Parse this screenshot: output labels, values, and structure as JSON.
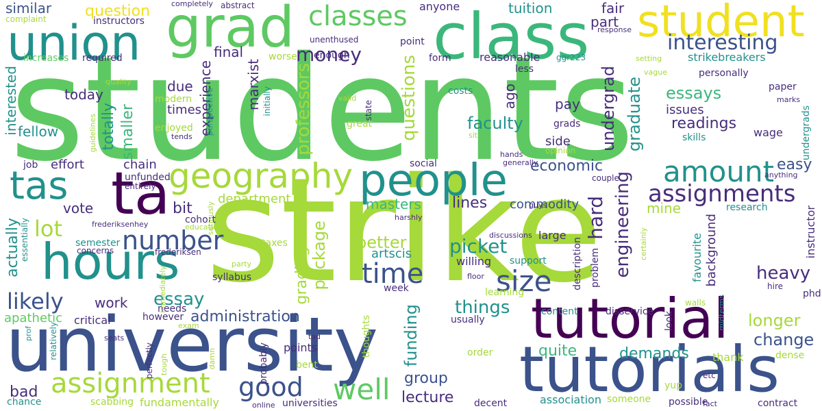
{
  "palette": {
    "background": "#ffffff",
    "yellow": "#f0e020",
    "lime": "#a6d93a",
    "green": "#5ec962",
    "mint": "#3bb77b",
    "teal": "#21918c",
    "cyan": "#2c8d8a",
    "blue": "#3b528b",
    "indigo": "#472d7b",
    "purple": "#440154"
  },
  "words": [
    {
      "text": "students",
      "color": "green"
    },
    {
      "text": "strike",
      "color": "lime"
    },
    {
      "text": "university",
      "color": "blue"
    },
    {
      "text": "tutorials",
      "color": "blue"
    },
    {
      "text": "tutorial",
      "color": "purple"
    },
    {
      "text": "class",
      "color": "mint"
    },
    {
      "text": "student",
      "color": "yellow"
    },
    {
      "text": "union",
      "color": "teal"
    },
    {
      "text": "grad",
      "color": "green"
    },
    {
      "text": "hours",
      "color": "teal"
    },
    {
      "text": "people",
      "color": "teal"
    },
    {
      "text": "ta",
      "color": "purple"
    },
    {
      "text": "tas",
      "color": "teal"
    },
    {
      "text": "geography",
      "color": "lime"
    },
    {
      "text": "assignment",
      "color": "lime"
    },
    {
      "text": "classes",
      "color": "green"
    },
    {
      "text": "amount",
      "color": "teal"
    },
    {
      "text": "assignments",
      "color": "indigo"
    },
    {
      "text": "number",
      "color": "blue"
    },
    {
      "text": "size",
      "color": "blue"
    },
    {
      "text": "time",
      "color": "blue"
    },
    {
      "text": "well",
      "color": "green"
    },
    {
      "text": "good",
      "color": "blue"
    },
    {
      "text": "interesting",
      "color": "blue"
    },
    {
      "text": "money",
      "color": "indigo"
    },
    {
      "text": "lot",
      "color": "lime"
    },
    {
      "text": "likely",
      "color": "blue"
    },
    {
      "text": "administration",
      "color": "blue"
    },
    {
      "text": "experience",
      "color": "indigo"
    },
    {
      "text": "professors",
      "color": "lime"
    },
    {
      "text": "questions",
      "color": "lime"
    },
    {
      "text": "faculty",
      "color": "teal"
    },
    {
      "text": "economic",
      "color": "blue"
    },
    {
      "text": "hard",
      "color": "indigo"
    },
    {
      "text": "engineering",
      "color": "indigo"
    },
    {
      "text": "graduate",
      "color": "teal"
    },
    {
      "text": "undergrad",
      "color": "indigo"
    },
    {
      "text": "readings",
      "color": "indigo"
    },
    {
      "text": "essays",
      "color": "mint"
    },
    {
      "text": "picket",
      "color": "teal"
    },
    {
      "text": "things",
      "color": "teal"
    },
    {
      "text": "heavy",
      "color": "indigo"
    },
    {
      "text": "longer",
      "color": "lime"
    },
    {
      "text": "change",
      "color": "blue"
    },
    {
      "text": "essay",
      "color": "teal"
    },
    {
      "text": "demands",
      "color": "teal"
    },
    {
      "text": "package",
      "color": "lime"
    },
    {
      "text": "grading",
      "color": "lime"
    },
    {
      "text": "funding",
      "color": "teal"
    },
    {
      "text": "better",
      "color": "lime"
    },
    {
      "text": "lecture",
      "color": "indigo"
    },
    {
      "text": "group",
      "color": "blue"
    },
    {
      "text": "quite",
      "color": "mint"
    },
    {
      "text": "masters",
      "color": "mint"
    },
    {
      "text": "department",
      "color": "lime"
    },
    {
      "text": "lines",
      "color": "indigo"
    },
    {
      "text": "commodity",
      "color": "blue"
    },
    {
      "text": "vote",
      "color": "indigo"
    },
    {
      "text": "bit",
      "color": "indigo"
    },
    {
      "text": "actually",
      "color": "teal"
    },
    {
      "text": "bad",
      "color": "indigo"
    },
    {
      "text": "work",
      "color": "indigo"
    },
    {
      "text": "apathetic",
      "color": "green"
    },
    {
      "text": "critical",
      "color": "indigo"
    },
    {
      "text": "effort",
      "color": "indigo"
    },
    {
      "text": "chain",
      "color": "indigo"
    },
    {
      "text": "totally",
      "color": "teal"
    },
    {
      "text": "smaller",
      "color": "mint"
    },
    {
      "text": "marxist",
      "color": "indigo"
    },
    {
      "text": "today",
      "color": "indigo"
    },
    {
      "text": "final",
      "color": "indigo"
    },
    {
      "text": "question",
      "color": "yellow"
    },
    {
      "text": "similar",
      "color": "blue"
    },
    {
      "text": "fellow",
      "color": "teal"
    },
    {
      "text": "interested",
      "color": "teal"
    },
    {
      "text": "due",
      "color": "indigo"
    },
    {
      "text": "times",
      "color": "indigo"
    },
    {
      "text": "part",
      "color": "indigo"
    },
    {
      "text": "fair",
      "color": "indigo"
    },
    {
      "text": "tuition",
      "color": "teal"
    },
    {
      "text": "anyone",
      "color": "indigo"
    },
    {
      "text": "reasonable",
      "color": "indigo"
    },
    {
      "text": "strikebreakers",
      "color": "teal"
    },
    {
      "text": "ago",
      "color": "indigo"
    },
    {
      "text": "pay",
      "color": "indigo"
    },
    {
      "text": "side",
      "color": "indigo"
    },
    {
      "text": "costs",
      "color": "teal"
    },
    {
      "text": "paper",
      "color": "indigo"
    },
    {
      "text": "issues",
      "color": "indigo"
    },
    {
      "text": "skills",
      "color": "teal"
    },
    {
      "text": "wage",
      "color": "indigo"
    },
    {
      "text": "easy",
      "color": "blue"
    },
    {
      "text": "mine",
      "color": "lime"
    },
    {
      "text": "research",
      "color": "teal"
    },
    {
      "text": "instructor",
      "color": "indigo"
    },
    {
      "text": "background",
      "color": "indigo"
    },
    {
      "text": "favourite",
      "color": "teal"
    },
    {
      "text": "support",
      "color": "teal"
    },
    {
      "text": "willing",
      "color": "indigo"
    },
    {
      "text": "large",
      "color": "indigo"
    },
    {
      "text": "description",
      "color": "indigo"
    },
    {
      "text": "problem",
      "color": "indigo"
    },
    {
      "text": "content",
      "color": "teal"
    },
    {
      "text": "disservice",
      "color": "indigo"
    },
    {
      "text": "look",
      "color": "indigo"
    },
    {
      "text": "phd",
      "color": "indigo"
    },
    {
      "text": "walls",
      "color": "lime"
    },
    {
      "text": "hire",
      "color": "indigo"
    },
    {
      "text": "thank",
      "color": "lime"
    },
    {
      "text": "dense",
      "color": "lime"
    },
    {
      "text": "yup",
      "color": "lime"
    },
    {
      "text": "possible",
      "color": "indigo"
    },
    {
      "text": "contract",
      "color": "indigo"
    },
    {
      "text": "someone",
      "color": "lime"
    },
    {
      "text": "association",
      "color": "teal"
    },
    {
      "text": "decent",
      "color": "indigo"
    },
    {
      "text": "universities",
      "color": "indigo"
    },
    {
      "text": "online",
      "color": "indigo"
    },
    {
      "text": "fundamentally",
      "color": "lime"
    },
    {
      "text": "scabbing",
      "color": "lime"
    },
    {
      "text": "chance",
      "color": "teal"
    },
    {
      "text": "semester",
      "color": "teal"
    },
    {
      "text": "syllabus",
      "color": "indigo"
    },
    {
      "text": "cohort",
      "color": "indigo"
    },
    {
      "text": "taxes",
      "color": "lime"
    },
    {
      "text": "artscis",
      "color": "teal"
    },
    {
      "text": "learning",
      "color": "lime"
    },
    {
      "text": "usually",
      "color": "indigo"
    },
    {
      "text": "order",
      "color": "lime"
    },
    {
      "text": "points",
      "color": "indigo"
    },
    {
      "text": "bent",
      "color": "lime"
    },
    {
      "text": "probably",
      "color": "indigo"
    },
    {
      "text": "thoughts",
      "color": "lime"
    },
    {
      "text": "week",
      "color": "indigo"
    },
    {
      "text": "however",
      "color": "indigo"
    },
    {
      "text": "needs",
      "color": "indigo"
    },
    {
      "text": "job",
      "color": "indigo"
    },
    {
      "text": "essentially",
      "color": "teal"
    },
    {
      "text": "concerns",
      "color": "indigo"
    },
    {
      "text": "frederiksen",
      "color": "indigo"
    },
    {
      "text": "frederiksenhey",
      "color": "indigo"
    },
    {
      "text": "education",
      "color": "lime"
    },
    {
      "text": "unfunded",
      "color": "indigo"
    },
    {
      "text": "entirely",
      "color": "indigo"
    },
    {
      "text": "social",
      "color": "indigo"
    },
    {
      "text": "generally",
      "color": "indigo"
    },
    {
      "text": "hands",
      "color": "indigo"
    },
    {
      "text": "couple",
      "color": "indigo"
    },
    {
      "text": "anything",
      "color": "indigo"
    },
    {
      "text": "guys",
      "color": "indigo"
    },
    {
      "text": "discussions",
      "color": "indigo"
    },
    {
      "text": "harshly",
      "color": "indigo"
    },
    {
      "text": "floor",
      "color": "indigo"
    },
    {
      "text": "great",
      "color": "lime"
    },
    {
      "text": "grads",
      "color": "indigo"
    },
    {
      "text": "opinion",
      "color": "lime"
    },
    {
      "text": "state",
      "color": "indigo"
    },
    {
      "text": "valid",
      "color": "lime"
    },
    {
      "text": "sit",
      "color": "lime"
    },
    {
      "text": "tends",
      "color": "indigo"
    },
    {
      "text": "modern",
      "color": "lime"
    },
    {
      "text": "enjoyed",
      "color": "lime"
    },
    {
      "text": "perspective",
      "color": "teal"
    },
    {
      "text": "quality",
      "color": "lime"
    },
    {
      "text": "guidelines",
      "color": "lime"
    },
    {
      "text": "initially",
      "color": "teal"
    },
    {
      "text": "less",
      "color": "indigo"
    },
    {
      "text": "form",
      "color": "indigo"
    },
    {
      "text": "enough",
      "color": "indigo"
    },
    {
      "text": "worse",
      "color": "lime"
    },
    {
      "text": "point",
      "color": "indigo"
    },
    {
      "text": "unenthused",
      "color": "indigo"
    },
    {
      "text": "abstract",
      "color": "indigo"
    },
    {
      "text": "completely",
      "color": "indigo"
    },
    {
      "text": "instructors",
      "color": "indigo"
    },
    {
      "text": "complaint",
      "color": "lime"
    },
    {
      "text": "increases",
      "color": "green"
    },
    {
      "text": "required",
      "color": "indigo"
    },
    {
      "text": "ggr223",
      "color": "teal"
    },
    {
      "text": "response",
      "color": "indigo"
    },
    {
      "text": "setting",
      "color": "lime"
    },
    {
      "text": "vague",
      "color": "lime"
    },
    {
      "text": "personally",
      "color": "indigo"
    },
    {
      "text": "marks",
      "color": "indigo"
    },
    {
      "text": "undergrads",
      "color": "teal"
    },
    {
      "text": "midterms",
      "color": "teal"
    },
    {
      "text": "etc",
      "color": "indigo"
    },
    {
      "text": "fact",
      "color": "indigo"
    },
    {
      "text": "tad",
      "color": "indigo"
    },
    {
      "text": "exam",
      "color": "lime"
    },
    {
      "text": "immediately",
      "color": "lime"
    },
    {
      "text": "damn",
      "color": "lime"
    },
    {
      "text": "tough",
      "color": "lime"
    },
    {
      "text": "perfectly",
      "color": "indigo"
    },
    {
      "text": "relatively",
      "color": "teal"
    },
    {
      "text": "prof",
      "color": "teal"
    },
    {
      "text": "seats",
      "color": "indigo"
    },
    {
      "text": "party",
      "color": "lime"
    },
    {
      "text": "seriously",
      "color": "lime"
    },
    {
      "text": "certainly",
      "color": "lime"
    }
  ]
}
